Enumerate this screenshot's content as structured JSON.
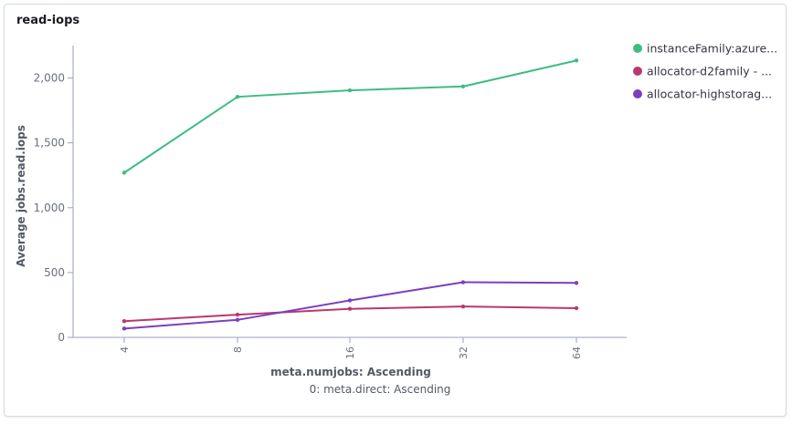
{
  "panel": {
    "title": "read-iops"
  },
  "chart_data": {
    "type": "line",
    "title": "read-iops",
    "xlabel": "meta.numjobs: Ascending",
    "xlabel_sub": "0: meta.direct: Ascending",
    "ylabel": "Average jobs.read.iops",
    "categories": [
      "4",
      "8",
      "16",
      "32",
      "64"
    ],
    "yticks": [
      0,
      500,
      1000,
      1500,
      2000
    ],
    "ytick_labels": [
      "0",
      "500",
      "1,000",
      "1,500",
      "2,000"
    ],
    "ylim": [
      0,
      2250
    ],
    "grid": false,
    "legend_position": "right",
    "series": [
      {
        "name": "instanceFamily:azure...",
        "color": "#3ebc84",
        "values": [
          1270,
          1855,
          1905,
          1935,
          2135
        ]
      },
      {
        "name": "allocator-d2family - ...",
        "color": "#b9386e",
        "values": [
          125,
          175,
          220,
          238,
          225
        ]
      },
      {
        "name": "allocator-highstorag...",
        "color": "#7b3fbf",
        "values": [
          68,
          135,
          285,
          425,
          420
        ]
      }
    ]
  }
}
